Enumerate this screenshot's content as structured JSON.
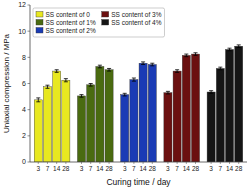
{
  "chart_data": {
    "type": "bar",
    "xlabel": "Curing time / day",
    "ylabel": "Uniaxial compression / MPa",
    "categories": [
      "3",
      "7",
      "14",
      "28"
    ],
    "series": [
      {
        "name": "SS content of 0",
        "color": "#e8e820",
        "values": [
          4.75,
          5.75,
          6.95,
          6.25
        ],
        "errors": [
          0.15,
          0.12,
          0.1,
          0.12
        ]
      },
      {
        "name": "SS content of 1%",
        "color": "#4a6b10",
        "values": [
          5.05,
          5.9,
          7.3,
          7.05
        ],
        "errors": [
          0.1,
          0.1,
          0.1,
          0.1
        ]
      },
      {
        "name": "SS content of 2%",
        "color": "#1a3bb5",
        "values": [
          5.15,
          6.3,
          7.55,
          7.45
        ],
        "errors": [
          0.1,
          0.12,
          0.1,
          0.1
        ]
      },
      {
        "name": "SS content of 3%",
        "color": "#6b1010",
        "values": [
          5.3,
          6.95,
          8.15,
          8.25
        ],
        "errors": [
          0.1,
          0.1,
          0.1,
          0.1
        ]
      },
      {
        "name": "SS content of 4%",
        "color": "#151515",
        "values": [
          5.35,
          7.15,
          8.6,
          8.85
        ],
        "errors": [
          0.1,
          0.1,
          0.1,
          0.1
        ]
      }
    ],
    "ylim": [
      0,
      12
    ],
    "yticks": [
      0,
      2,
      4,
      6,
      8,
      10,
      12
    ],
    "grid": false,
    "legend": "upper left"
  }
}
